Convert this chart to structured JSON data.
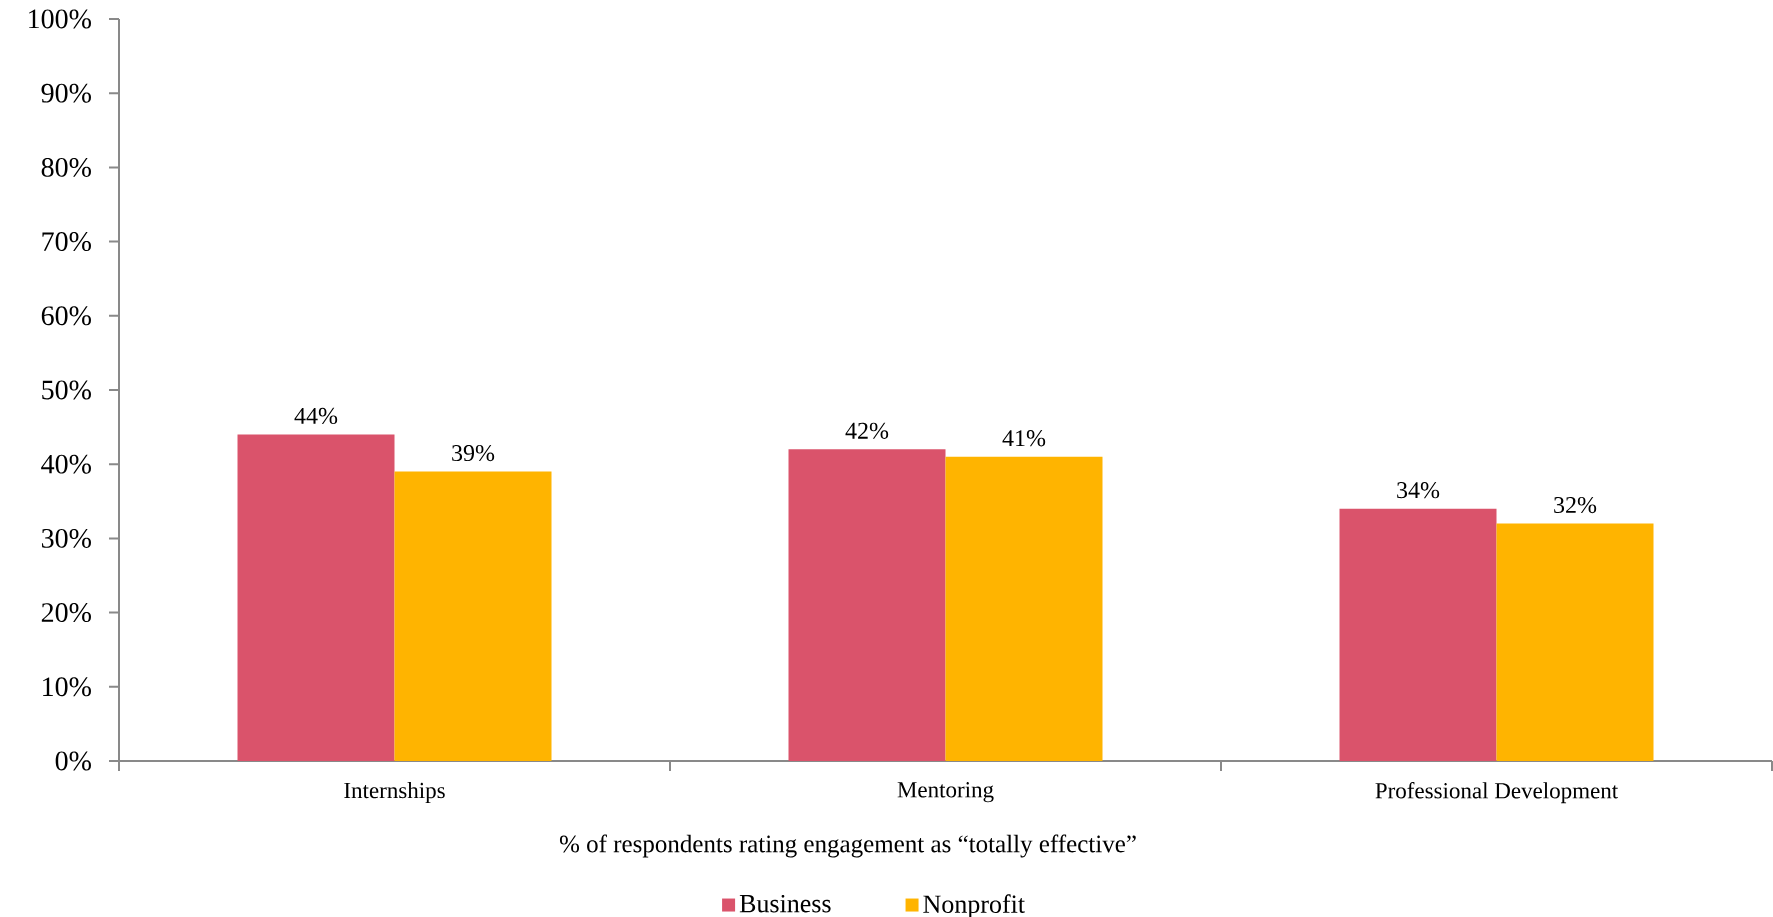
{
  "chart_data": {
    "type": "bar",
    "xlabel": "% of respondents rating engagement as “totally effective”",
    "categories": [
      "Internships",
      "Mentoring",
      "Professional Development"
    ],
    "series": [
      {
        "name": "Business",
        "color": "#da536b",
        "values": [
          44,
          42,
          34
        ],
        "value_labels": [
          "44%",
          "42%",
          "34%"
        ]
      },
      {
        "name": "Nonprofit",
        "color": "#ffb400",
        "values": [
          39,
          41,
          32
        ],
        "value_labels": [
          "39%",
          "41%",
          "32%"
        ]
      }
    ],
    "ylim": [
      0,
      100
    ],
    "yticks": [
      {
        "value": 0,
        "label": "0%"
      },
      {
        "value": 10,
        "label": "10%"
      },
      {
        "value": 20,
        "label": "20%"
      },
      {
        "value": 30,
        "label": "30%"
      },
      {
        "value": 40,
        "label": "40%"
      },
      {
        "value": 50,
        "label": "50%"
      },
      {
        "value": 60,
        "label": "60%"
      },
      {
        "value": 70,
        "label": "70%"
      },
      {
        "value": 80,
        "label": "80%"
      },
      {
        "value": 90,
        "label": "90%"
      },
      {
        "value": 100,
        "label": "100%"
      }
    ],
    "legend": "bottom"
  }
}
